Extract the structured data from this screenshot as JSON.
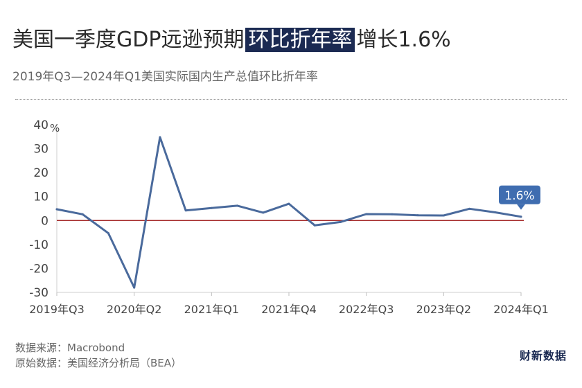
{
  "title": {
    "before": "美国一季度GDP远逊预期",
    "highlight": "环比折年率",
    "after": "增长1.6%"
  },
  "subtitle": "2019年Q3—2024年Q1美国实际国内生产总值环比折年率",
  "source": {
    "line1": "数据来源：Macrobond",
    "line2": "原始数据：美国经济分析局（BEA）"
  },
  "logo": "财新数据",
  "colors": {
    "line": "#4a6a9c",
    "zero_line": "#a52a2a",
    "callout": "#3f6db0",
    "highlight_bg": "#1b2a52"
  },
  "chart_data": {
    "type": "line",
    "title": "美国一季度GDP远逊预期 环比折年率增长1.6%",
    "subtitle": "2019年Q3—2024年Q1美国实际国内生产总值环比折年率",
    "x": [
      "2019年Q3",
      "2019年Q4",
      "2020年Q1",
      "2020年Q2",
      "2020年Q3",
      "2020年Q4",
      "2021年Q1",
      "2021年Q2",
      "2021年Q3",
      "2021年Q4",
      "2022年Q1",
      "2022年Q2",
      "2022年Q3",
      "2022年Q4",
      "2023年Q1",
      "2023年Q2",
      "2023年Q3",
      "2023年Q4",
      "2024年Q1"
    ],
    "values": [
      4.7,
      2.6,
      -5.3,
      -28.0,
      34.8,
      4.2,
      5.2,
      6.2,
      3.3,
      7.0,
      -2.0,
      -0.6,
      2.7,
      2.6,
      2.2,
      2.1,
      4.9,
      3.4,
      1.6
    ],
    "x_tick_labels": [
      "2019年Q3",
      "2020年Q2",
      "2021年Q1",
      "2021年Q4",
      "2022年Q3",
      "2023年Q2",
      "2024年Q1"
    ],
    "x_tick_indices": [
      0,
      3,
      6,
      9,
      12,
      15,
      18
    ],
    "y_ticks": [
      40,
      30,
      20,
      10,
      0,
      -10,
      -20,
      -30
    ],
    "y_tick_labels": [
      "40",
      "30",
      "20",
      "10",
      "0",
      "-10",
      "-20",
      "-30"
    ],
    "y_unit": "%",
    "ylim": [
      -30,
      40
    ],
    "callout": "1.6%",
    "grid": false,
    "legend": "none"
  }
}
